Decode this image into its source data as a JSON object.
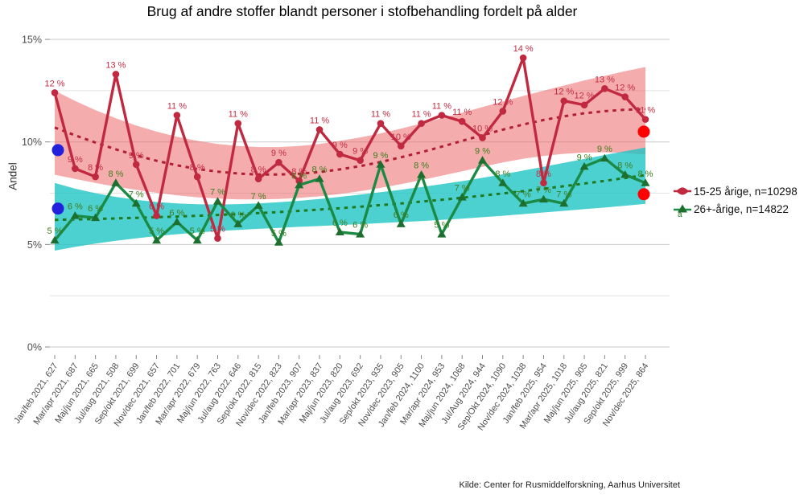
{
  "title": "Brug af andre stoffer blandt personer i stofbehandling fordelt på alder",
  "y_axis": {
    "label": "Andel",
    "tick_labels": [
      "0%",
      "5%",
      "10%",
      "15%"
    ]
  },
  "legend": {
    "items": [
      {
        "label": "15-25 årige, n=10298",
        "marker": "red-lens"
      },
      {
        "label": "26+-årige, n=14822",
        "marker": "green-triangle"
      }
    ],
    "footnote": "a",
    "position": "right"
  },
  "source": "Kilde: Center for Rusmiddelforskning, Aarhus Universitet",
  "colors": {
    "red_line": "#C02940",
    "red_label": "#C22C42",
    "red_trend": "#B01E32",
    "red_band": "rgba(235,90,92,0.5)",
    "green_line": "#1B8A44",
    "green_marker": "#1D6F2F",
    "green_label": "#3E7D1C",
    "green_trend": "#1E7A1E",
    "teal_band": "rgba(32,196,196,0.8)",
    "blue_dot": "#2222DD",
    "red_dot": "#FF0000",
    "grid_major": "#C9C9C9",
    "grid_minor": "#E2E2E2",
    "axis_text": "#4D4D4D",
    "tick_mark": "#888888"
  },
  "chart_data": {
    "type": "line",
    "title": "Brug af andre stoffer blandt personer i stofbehandling fordelt på alder",
    "xlabel": "",
    "ylabel": "Andel",
    "ylim": [
      0,
      15
    ],
    "y_ticks_percent": [
      0,
      5,
      10,
      15
    ],
    "y_minor_gridlines_percent": [
      2.5,
      7.5,
      12.5
    ],
    "grid": "horizontal-only",
    "legend_position": "right",
    "categories": [
      "Jan/feb 2021, 627",
      "Mar/apr 2021, 687",
      "Maj/jun 2021, 665",
      "Jul/aug 2021, 508",
      "Sep/okt 2021, 699",
      "Nov/dec 2021, 657",
      "Jan/feb 2022, 701",
      "Mar/apr 2022, 679",
      "Maj/jun 2022, 763",
      "Jul/aug 2022, 646",
      "Sep/okt 2022, 815",
      "Nov/dec 2022, 823",
      "Jan/feb 2023, 907",
      "Mar/apr 2023, 837",
      "Maj/jun 2023, 820",
      "Jul/aug 2023, 692",
      "Sep/okt 2023, 935",
      "Nov/dec 2023, 905",
      "Jan/feb 2024, 1100",
      "Mar/apr 2024, 953",
      "Maj/jun 2024, 1068",
      "Jul/Aug 2024, 944",
      "Sep/Okt 2024, 1090",
      "Nov/dec 2024, 1038",
      "Jan/feb 2025, 954",
      "Mar/apr 2025, 1018",
      "Maj/jun 2025, 905",
      "Jul/aug 2025, 821",
      "Sep/okt 2025, 999",
      "Nov/dec 2025, 864"
    ],
    "series": [
      {
        "name": "15-25 årige, n=10298",
        "marker": "circle",
        "label_suffix": " %",
        "values": [
          12,
          9,
          8,
          13,
          9,
          6,
          11,
          8,
          5,
          11,
          8,
          9,
          8,
          11,
          9,
          9,
          11,
          10,
          11,
          11,
          11,
          10,
          12,
          14,
          8,
          12,
          12,
          13,
          12,
          11
        ],
        "values_precise": [
          12.4,
          8.7,
          8.3,
          13.3,
          8.9,
          6.4,
          11.3,
          8.3,
          5.3,
          10.9,
          8.2,
          9.0,
          8.1,
          10.6,
          9.4,
          9.1,
          10.9,
          9.8,
          10.9,
          11.3,
          11.0,
          10.2,
          11.5,
          14.1,
          8.0,
          12.0,
          11.8,
          12.6,
          12.2,
          11.1
        ]
      },
      {
        "name": "26+-årige, n=14822",
        "marker": "triangle",
        "label_suffix": " %",
        "values": [
          5,
          6,
          6,
          8,
          7,
          5,
          6,
          5,
          7,
          6,
          7,
          5,
          8,
          8,
          6,
          6,
          9,
          6,
          8,
          5,
          7,
          9,
          8,
          7,
          7,
          7,
          9,
          9,
          8,
          8
        ],
        "values_precise": [
          5.2,
          6.4,
          6.3,
          8.0,
          7.0,
          5.2,
          6.1,
          5.2,
          7.1,
          6.0,
          6.9,
          5.1,
          7.9,
          8.2,
          5.6,
          5.5,
          8.9,
          6.0,
          8.4,
          5.5,
          7.3,
          9.1,
          8.0,
          7.0,
          7.2,
          7.0,
          8.8,
          9.2,
          8.4,
          8.0
        ]
      }
    ],
    "trend_lines": [
      {
        "series": "15-25 årige, n=10298",
        "style": "dashed",
        "values": [
          10.7,
          10.32,
          9.97,
          9.64,
          9.34,
          9.08,
          8.86,
          8.68,
          8.55,
          8.46,
          8.41,
          8.41,
          8.45,
          8.53,
          8.66,
          8.82,
          9.02,
          9.25,
          9.5,
          9.77,
          10.05,
          10.33,
          10.6,
          10.85,
          11.07,
          11.25,
          11.4,
          11.5,
          11.57,
          11.6
        ]
      },
      {
        "series": "26+-årige, n=14822",
        "style": "dashed",
        "values": [
          6.2,
          6.22,
          6.24,
          6.27,
          6.3,
          6.33,
          6.36,
          6.4,
          6.44,
          6.48,
          6.53,
          6.58,
          6.64,
          6.7,
          6.77,
          6.84,
          6.92,
          7.0,
          7.09,
          7.18,
          7.28,
          7.38,
          7.49,
          7.6,
          7.72,
          7.84,
          7.97,
          8.1,
          8.24,
          8.38
        ]
      }
    ],
    "confidence_bands": [
      {
        "series": "15-25 årige, n=10298",
        "upper": [
          12.5,
          12.0,
          11.55,
          11.15,
          10.8,
          10.5,
          10.25,
          10.05,
          9.9,
          9.8,
          9.75,
          9.75,
          9.8,
          9.9,
          10.05,
          10.22,
          10.42,
          10.65,
          10.9,
          11.15,
          11.42,
          11.7,
          11.97,
          12.24,
          12.5,
          12.75,
          13.0,
          13.22,
          13.45,
          13.65
        ],
        "lower": [
          8.4,
          8.2,
          8.0,
          7.82,
          7.66,
          7.52,
          7.4,
          7.3,
          7.24,
          7.2,
          7.2,
          7.22,
          7.27,
          7.35,
          7.46,
          7.6,
          7.76,
          7.94,
          8.14,
          8.35,
          8.57,
          8.79,
          9.0,
          9.18,
          9.32,
          9.42,
          9.48,
          9.5,
          9.46,
          9.38
        ]
      },
      {
        "series": "26+-årige, n=14822",
        "upper": [
          8.0,
          7.72,
          7.5,
          7.32,
          7.18,
          7.07,
          7.0,
          6.96,
          6.95,
          6.97,
          7.0,
          7.06,
          7.13,
          7.22,
          7.32,
          7.43,
          7.55,
          7.67,
          7.8,
          7.94,
          8.09,
          8.25,
          8.42,
          8.6,
          8.79,
          8.98,
          9.17,
          9.36,
          9.55,
          9.73
        ],
        "lower": [
          4.7,
          4.88,
          5.04,
          5.18,
          5.3,
          5.41,
          5.5,
          5.58,
          5.65,
          5.71,
          5.76,
          5.81,
          5.86,
          5.9,
          5.95,
          5.99,
          6.04,
          6.09,
          6.14,
          6.2,
          6.26,
          6.33,
          6.4,
          6.48,
          6.56,
          6.64,
          6.72,
          6.8,
          6.89,
          6.98
        ]
      }
    ],
    "reference_points": [
      {
        "position": "start",
        "color_key": "blue_dot",
        "value": 9.6
      },
      {
        "position": "start",
        "color_key": "blue_dot",
        "value": 6.75
      },
      {
        "position": "end",
        "color_key": "red_dot",
        "value": 10.5
      },
      {
        "position": "end",
        "color_key": "red_dot",
        "value": 7.45
      }
    ]
  }
}
